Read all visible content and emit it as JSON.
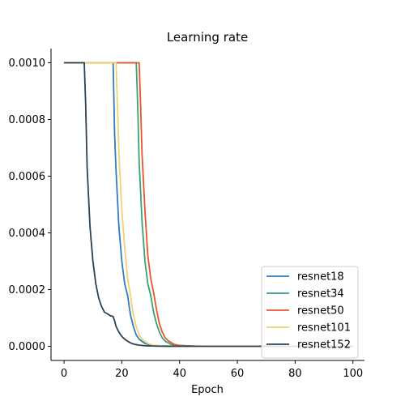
{
  "chart_data": {
    "type": "line",
    "title": "Learning rate",
    "xlabel": "Epoch",
    "ylabel": "",
    "xlim": [
      -4.5,
      104
    ],
    "ylim": [
      -5e-05,
      0.00105
    ],
    "xticks": [
      0,
      20,
      40,
      60,
      80,
      100
    ],
    "xtick_labels": [
      "0",
      "20",
      "40",
      "60",
      "80",
      "100"
    ],
    "yticks": [
      0,
      0.0002,
      0.0004,
      0.0006,
      0.0008,
      0.001
    ],
    "ytick_labels": [
      "0.0000",
      "0.0002",
      "0.0004",
      "0.0006",
      "0.0008",
      "0.0010"
    ],
    "grid": false,
    "legend_position": "bottom-right",
    "series": [
      {
        "name": "resnet18",
        "color": "#2f7dc0",
        "x": [
          0,
          5,
          10,
          15,
          17,
          17.5,
          18,
          19,
          20,
          21,
          22,
          23,
          24,
          25,
          26,
          28,
          30,
          33,
          36,
          40,
          50,
          60,
          70,
          80,
          90,
          100
        ],
        "y": [
          0.001,
          0.001,
          0.001,
          0.001,
          0.001,
          0.00075,
          0.00062,
          0.00042,
          0.0003,
          0.00022,
          0.00018,
          0.00011,
          7e-05,
          4e-05,
          2.5e-05,
          1e-05,
          4e-06,
          1.5e-06,
          5e-07,
          2e-07,
          0,
          0,
          0,
          0,
          0,
          0
        ]
      },
      {
        "name": "resnet34",
        "color": "#3aa078",
        "x": [
          0,
          5,
          10,
          15,
          20,
          25,
          25.5,
          26,
          27,
          28,
          29,
          30,
          31,
          32,
          33,
          34,
          35,
          37,
          40,
          45,
          50,
          60,
          70,
          80,
          90,
          100
        ],
        "y": [
          0.001,
          0.001,
          0.001,
          0.001,
          0.001,
          0.001,
          0.00085,
          0.00065,
          0.00044,
          0.0003,
          0.00022,
          0.00018,
          0.00012,
          8e-05,
          5e-05,
          3e-05,
          1.8e-05,
          7e-06,
          2e-06,
          5e-07,
          0,
          0,
          0,
          0,
          0,
          0
        ]
      },
      {
        "name": "resnet50",
        "color": "#e8552a",
        "x": [
          0,
          5,
          10,
          15,
          20,
          25,
          26,
          26.5,
          27,
          28,
          29,
          30,
          31,
          32,
          33,
          34,
          35,
          36,
          38,
          40,
          45,
          50,
          60,
          70,
          80,
          90,
          100
        ],
        "y": [
          0.001,
          0.001,
          0.001,
          0.001,
          0.001,
          0.001,
          0.001,
          0.00085,
          0.00068,
          0.00048,
          0.00032,
          0.00024,
          0.00019,
          0.00013,
          8e-05,
          5e-05,
          3e-05,
          2e-05,
          7e-06,
          3e-06,
          5e-07,
          0,
          0,
          0,
          0,
          0,
          0
        ]
      },
      {
        "name": "resnet101",
        "color": "#efd370",
        "x": [
          0,
          5,
          10,
          15,
          18,
          18.5,
          19,
          20,
          21,
          22,
          23,
          24,
          25,
          26,
          27,
          29,
          31,
          34,
          38,
          45,
          50,
          60,
          70,
          80,
          90,
          100
        ],
        "y": [
          0.001,
          0.001,
          0.001,
          0.001,
          0.001,
          0.00085,
          0.00068,
          0.00048,
          0.00035,
          0.00024,
          0.00018,
          0.00011,
          7e-05,
          4e-05,
          2.5e-05,
          1e-05,
          4e-06,
          1.5e-06,
          5e-07,
          1e-07,
          0,
          0,
          0,
          0,
          0,
          0
        ]
      },
      {
        "name": "resnet152",
        "color": "#2b4050",
        "x": [
          0,
          3,
          6,
          7,
          7.5,
          8,
          9,
          10,
          11,
          12,
          13,
          14,
          15,
          16,
          17,
          17.5,
          18,
          19,
          20,
          21,
          22,
          23,
          24,
          26,
          28,
          30,
          33,
          36,
          40,
          50,
          60,
          70,
          80,
          90,
          100
        ],
        "y": [
          0.001,
          0.001,
          0.001,
          0.001,
          0.00085,
          0.00063,
          0.00042,
          0.0003,
          0.00022,
          0.00017,
          0.00014,
          0.00012,
          0.000115,
          0.000108,
          0.000105,
          9e-05,
          7e-05,
          5e-05,
          3.5e-05,
          2.5e-05,
          1.8e-05,
          1.2e-05,
          8e-06,
          4e-06,
          2e-06,
          1e-06,
          4e-07,
          2e-07,
          1e-07,
          0,
          0,
          0,
          0,
          0,
          0
        ]
      }
    ]
  }
}
